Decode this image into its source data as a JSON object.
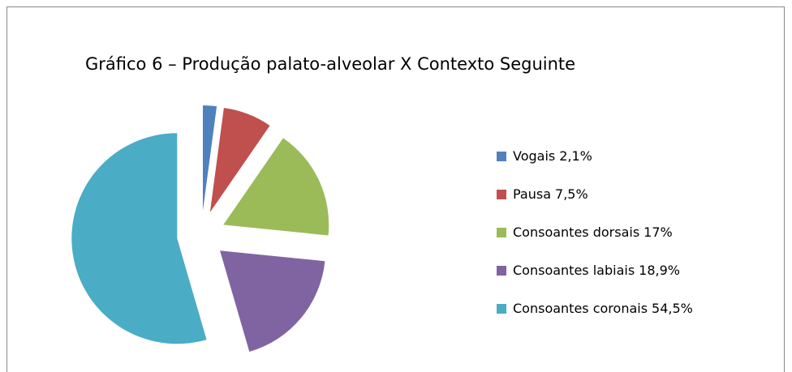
{
  "chart_data": {
    "type": "pie",
    "title": "Gráfico 6 – Produção palato-alveolar X Contexto Seguinte",
    "categories": [
      "Vogais",
      "Pausa",
      "Consoantes dorsais",
      "Consoantes labiais",
      "Consoantes coronais"
    ],
    "values": [
      2.1,
      7.5,
      17,
      18.9,
      54.5
    ],
    "value_labels": [
      "2,1%",
      "7,5%",
      "17%",
      "18,9%",
      "54,5%"
    ],
    "colors": [
      "#4f81bd",
      "#c0504d",
      "#9bbb59",
      "#8064a2",
      "#4bacc6"
    ],
    "legend": "right"
  }
}
